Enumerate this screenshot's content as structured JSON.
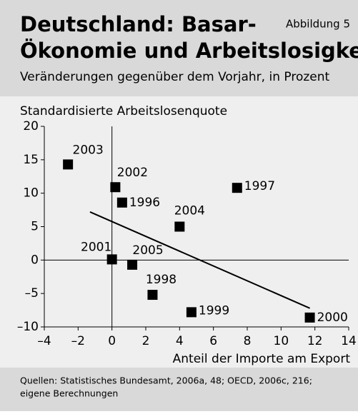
{
  "chart_data": {
    "type": "scatter",
    "title_line1": "Deutschland: Basar-",
    "title_line2": "Ökonomie und Arbeitslosigkeit",
    "figure_label": "Abbildung 5",
    "subtitle": "Veränderungen gegenüber dem Vorjahr, in Prozent",
    "y_label": "Standardisierte Arbeitslosenquote",
    "x_label": "Anteil der Importe am Export",
    "source_line1": "Quellen: Statistisches Bundesamt, 2006a, 48; OECD, 2006c, 216;",
    "source_line2": "eigene Berechnungen",
    "point_labels": [
      "2003",
      "2002",
      "1996",
      "2004",
      "1997",
      "2001",
      "2005",
      "1998",
      "1999",
      "2000"
    ],
    "x": [
      -2.6,
      0.2,
      0.6,
      4.0,
      7.4,
      0.0,
      1.2,
      2.4,
      4.7,
      11.7
    ],
    "values": [
      14.3,
      10.9,
      8.6,
      5.0,
      10.8,
      0.1,
      -0.7,
      -5.2,
      -7.8,
      -8.6
    ],
    "color": "#000000",
    "trend_line": {
      "x": [
        -1.3,
        11.7
      ],
      "y": [
        7.2,
        -7.2
      ]
    },
    "xlim": [
      -4,
      14
    ],
    "xticks": [
      {
        "value": -4,
        "label": "–4"
      },
      {
        "value": -2,
        "label": "–2"
      },
      0,
      2,
      4,
      6,
      8,
      10,
      12,
      14
    ],
    "ylim": [
      -10,
      20
    ],
    "yticks": [
      {
        "value": -10,
        "label": "–10"
      },
      {
        "value": -5,
        "label": "–5"
      },
      0,
      5,
      10,
      15,
      20
    ]
  }
}
